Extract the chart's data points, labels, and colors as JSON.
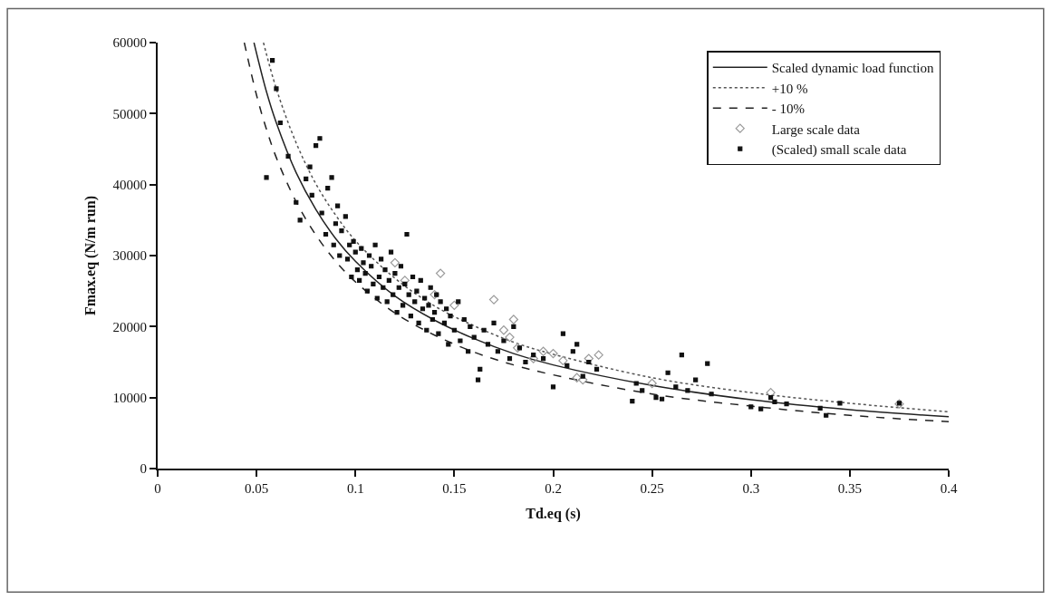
{
  "chart_data": {
    "type": "scatter",
    "xlabel": "Td.eq (s)",
    "ylabel": "Fmax.eq (N/m run)",
    "xlim": [
      0,
      0.4
    ],
    "xticks": [
      0,
      0.05,
      0.1,
      0.15,
      0.2,
      0.25,
      0.3,
      0.35,
      0.4
    ],
    "ylim": [
      0,
      60000
    ],
    "yticks": [
      0,
      10000,
      20000,
      30000,
      40000,
      50000,
      60000
    ],
    "legend": "top right",
    "series": [
      {
        "name": "Scaled dynamic load function",
        "type": "line",
        "line_style": "solid",
        "color": "#222222",
        "x": [
          0.0487,
          0.055,
          0.06,
          0.07,
          0.08,
          0.09,
          0.1,
          0.12,
          0.14,
          0.16,
          0.18,
          0.2,
          0.25,
          0.3,
          0.35,
          0.4
        ],
        "values": [
          60000,
          53100,
          48700,
          41700,
          36500,
          32400,
          29200,
          24300,
          20900,
          18300,
          16200,
          14600,
          11700,
          9700,
          8300,
          7300
        ]
      },
      {
        "name": "+10 %",
        "type": "line",
        "line_style": "dotted",
        "color": "#555555",
        "x": [
          0.0535,
          0.06,
          0.07,
          0.08,
          0.09,
          0.1,
          0.12,
          0.14,
          0.16,
          0.18,
          0.2,
          0.25,
          0.3,
          0.35,
          0.4
        ],
        "values": [
          60000,
          53500,
          45900,
          40100,
          35700,
          32100,
          26800,
          22900,
          20100,
          17800,
          16100,
          12800,
          10700,
          9200,
          8000
        ]
      },
      {
        "name": "- 10%",
        "type": "line",
        "line_style": "dashed",
        "color": "#222222",
        "x": [
          0.0438,
          0.05,
          0.055,
          0.06,
          0.07,
          0.08,
          0.09,
          0.1,
          0.12,
          0.14,
          0.16,
          0.18,
          0.2,
          0.25,
          0.3,
          0.35,
          0.4
        ],
        "values": [
          60000,
          52600,
          47800,
          43800,
          37600,
          32900,
          29200,
          26300,
          21900,
          18800,
          16400,
          14600,
          13200,
          10500,
          8800,
          7500,
          6600
        ]
      },
      {
        "name": "Large scale data",
        "marker": "diamond",
        "color": "#999999",
        "x": [
          0.12,
          0.125,
          0.14,
          0.143,
          0.15,
          0.17,
          0.175,
          0.178,
          0.18,
          0.182,
          0.19,
          0.195,
          0.2,
          0.205,
          0.212,
          0.215,
          0.218,
          0.223,
          0.25,
          0.31,
          0.375
        ],
        "values": [
          29000,
          26500,
          24500,
          27500,
          23000,
          23800,
          19500,
          18500,
          21000,
          17000,
          15500,
          16500,
          16200,
          15200,
          12800,
          12500,
          15500,
          16000,
          12000,
          10700,
          9100
        ]
      },
      {
        "name": "(Scaled) small scale data",
        "marker": "square",
        "color": "#111111",
        "x": [
          0.055,
          0.058,
          0.06,
          0.062,
          0.066,
          0.07,
          0.072,
          0.075,
          0.077,
          0.078,
          0.08,
          0.082,
          0.083,
          0.085,
          0.086,
          0.088,
          0.089,
          0.09,
          0.091,
          0.092,
          0.093,
          0.095,
          0.096,
          0.097,
          0.098,
          0.099,
          0.1,
          0.101,
          0.102,
          0.103,
          0.104,
          0.105,
          0.106,
          0.107,
          0.108,
          0.109,
          0.11,
          0.111,
          0.112,
          0.113,
          0.114,
          0.115,
          0.116,
          0.117,
          0.118,
          0.119,
          0.12,
          0.121,
          0.122,
          0.123,
          0.124,
          0.125,
          0.126,
          0.127,
          0.128,
          0.129,
          0.13,
          0.131,
          0.132,
          0.133,
          0.134,
          0.135,
          0.136,
          0.137,
          0.138,
          0.139,
          0.14,
          0.141,
          0.142,
          0.143,
          0.145,
          0.146,
          0.147,
          0.148,
          0.15,
          0.152,
          0.153,
          0.155,
          0.157,
          0.158,
          0.16,
          0.162,
          0.163,
          0.165,
          0.167,
          0.17,
          0.172,
          0.175,
          0.178,
          0.18,
          0.183,
          0.186,
          0.19,
          0.195,
          0.2,
          0.205,
          0.207,
          0.21,
          0.212,
          0.215,
          0.218,
          0.222,
          0.24,
          0.242,
          0.245,
          0.252,
          0.255,
          0.258,
          0.262,
          0.265,
          0.268,
          0.272,
          0.278,
          0.28,
          0.3,
          0.305,
          0.31,
          0.312,
          0.318,
          0.335,
          0.338,
          0.345,
          0.375
        ],
        "values": [
          41000,
          57500,
          53500,
          48700,
          44000,
          37500,
          35000,
          40800,
          42500,
          38500,
          45500,
          46500,
          36000,
          33000,
          39500,
          41000,
          31500,
          34500,
          37000,
          30000,
          33500,
          35500,
          29500,
          31500,
          27000,
          32000,
          30500,
          28000,
          26500,
          31000,
          29000,
          27500,
          25000,
          30000,
          28500,
          26000,
          31500,
          24000,
          27000,
          29500,
          25500,
          28000,
          23500,
          26500,
          30500,
          24500,
          27500,
          22000,
          25500,
          28500,
          23000,
          26000,
          33000,
          24500,
          21500,
          27000,
          23500,
          25000,
          20500,
          26500,
          22500,
          24000,
          19500,
          23000,
          25500,
          21000,
          22000,
          24500,
          19000,
          23500,
          20500,
          22500,
          17500,
          21500,
          19500,
          23500,
          18000,
          21000,
          16500,
          20000,
          18500,
          12500,
          14000,
          19500,
          17500,
          20500,
          16500,
          18000,
          15500,
          20000,
          17000,
          15000,
          16000,
          15500,
          11500,
          19000,
          14500,
          16500,
          17500,
          13000,
          15000,
          14000,
          9500,
          12000,
          11000,
          10000,
          9800,
          13500,
          11500,
          16000,
          11000,
          12500,
          14800,
          10500,
          8700,
          8400,
          10000,
          9400,
          9100,
          8500,
          7500,
          9200,
          9200
        ]
      }
    ]
  }
}
